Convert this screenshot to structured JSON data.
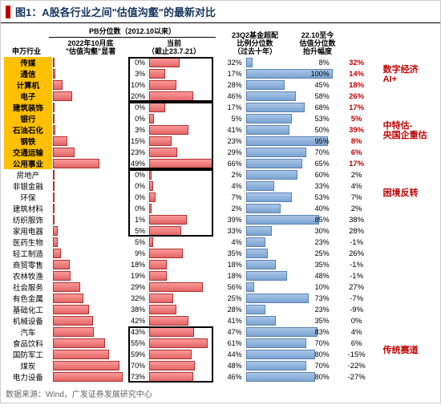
{
  "title": "图1：A股各行业之间\"估值沟壑\"的最新对比",
  "source": "数据来源：Wind，广发证券发展研究中心",
  "headers": {
    "industry": "申万行业",
    "pb_group": "PB分位数（2012.10以来）",
    "col_2022": "2022年10月底\n\"估值沟壑\"显著",
    "col_current": "当前\n（截止23.7.21）",
    "col_q2": "23Q2基金超配\n比例分位数\n（过去十年）",
    "col_change": "22.10至今\n估值分位数\n抬升幅度"
  },
  "group_labels": {
    "g1": "数字经济\nAI+",
    "g2": "中特估-\n央国企重估",
    "g3": "困境反转",
    "g4": "传统赛道"
  },
  "colors": {
    "title_block": "#c00000",
    "title_text": "#17365d",
    "yellow_bg": "#ffc000",
    "bar_red_top": "#ff9999",
    "bar_red_bot": "#e06666",
    "bar_red_border": "#b03030",
    "bar_blue_top": "#a8c5e8",
    "bar_blue_bot": "#7ba3d0",
    "bar_blue_border": "#5a82b0",
    "accent_red": "#c00000"
  },
  "rows": [
    {
      "ind": "传媒",
      "yellow": true,
      "v2022": 0,
      "vcur": 32,
      "vq2": 8,
      "chg": "32%",
      "chg_red": true,
      "group": 1
    },
    {
      "ind": "通信",
      "yellow": true,
      "v2022": 3,
      "vcur": 17,
      "vq2": 100,
      "chg": "14%",
      "chg_red": true,
      "group": 1
    },
    {
      "ind": "计算机",
      "yellow": true,
      "v2022": 10,
      "vcur": 28,
      "vq2": 45,
      "chg": "18%",
      "chg_red": true,
      "group": 1
    },
    {
      "ind": "电子",
      "yellow": true,
      "v2022": 20,
      "vcur": 46,
      "vq2": 58,
      "chg": "26%",
      "chg_red": true,
      "group": 1
    },
    {
      "ind": "建筑装饰",
      "yellow": true,
      "v2022": 0,
      "vcur": 17,
      "vq2": 68,
      "chg": "17%",
      "chg_red": true,
      "group": 2
    },
    {
      "ind": "银行",
      "yellow": true,
      "v2022": 0,
      "vcur": 5,
      "vq2": 53,
      "chg": "5%",
      "chg_red": true,
      "group": 2
    },
    {
      "ind": "石油石化",
      "yellow": true,
      "v2022": 3,
      "vcur": 41,
      "vq2": 50,
      "chg": "39%",
      "chg_red": true,
      "group": 2
    },
    {
      "ind": "钢铁",
      "yellow": true,
      "v2022": 15,
      "vcur": 23,
      "vq2": 95,
      "chg": "8%",
      "chg_red": true,
      "group": 2
    },
    {
      "ind": "交通运输",
      "yellow": true,
      "v2022": 23,
      "vcur": 29,
      "vq2": 70,
      "chg": "6%",
      "chg_red": true,
      "group": 2
    },
    {
      "ind": "公用事业",
      "yellow": true,
      "v2022": 49,
      "vcur": 66,
      "vq2": 65,
      "chg": "17%",
      "chg_red": true,
      "group": 2
    },
    {
      "ind": "房地产",
      "yellow": false,
      "v2022": 0,
      "vcur": 2,
      "vq2": 60,
      "chg": "2%",
      "chg_red": false,
      "group": 3
    },
    {
      "ind": "非银金融",
      "yellow": false,
      "v2022": 0,
      "vcur": 4,
      "vq2": 33,
      "chg": "4%",
      "chg_red": false,
      "group": 3
    },
    {
      "ind": "环保",
      "yellow": false,
      "v2022": 0,
      "vcur": 7,
      "vq2": 53,
      "chg": "7%",
      "chg_red": false,
      "group": 3
    },
    {
      "ind": "建筑材料",
      "yellow": false,
      "v2022": 0,
      "vcur": 2,
      "vq2": 40,
      "chg": "2%",
      "chg_red": false,
      "group": 3
    },
    {
      "ind": "纺织服饰",
      "yellow": false,
      "v2022": 1,
      "vcur": 39,
      "vq2": 85,
      "chg": "38%",
      "chg_red": false,
      "group": 3
    },
    {
      "ind": "家用电器",
      "yellow": false,
      "v2022": 5,
      "vcur": 33,
      "vq2": 30,
      "chg": "28%",
      "chg_red": false,
      "group": 3
    },
    {
      "ind": "医药生物",
      "yellow": false,
      "v2022": 5,
      "vcur": 4,
      "vq2": 23,
      "chg": "-1%",
      "chg_red": false,
      "group": 0
    },
    {
      "ind": "轻工制造",
      "yellow": false,
      "v2022": 9,
      "vcur": 35,
      "vq2": 25,
      "chg": "26%",
      "chg_red": false,
      "group": 0
    },
    {
      "ind": "商贸零售",
      "yellow": false,
      "v2022": 18,
      "vcur": 18,
      "vq2": 35,
      "chg": "-1%",
      "chg_red": false,
      "group": 0
    },
    {
      "ind": "农林牧渔",
      "yellow": false,
      "v2022": 19,
      "vcur": 18,
      "vq2": 48,
      "chg": "-1%",
      "chg_red": false,
      "group": 0
    },
    {
      "ind": "社会服务",
      "yellow": false,
      "v2022": 29,
      "vcur": 56,
      "vq2": 10,
      "chg": "27%",
      "chg_red": false,
      "group": 0
    },
    {
      "ind": "有色金属",
      "yellow": false,
      "v2022": 32,
      "vcur": 25,
      "vq2": 73,
      "chg": "-7%",
      "chg_red": false,
      "group": 0
    },
    {
      "ind": "基础化工",
      "yellow": false,
      "v2022": 38,
      "vcur": 28,
      "vq2": 23,
      "chg": "-9%",
      "chg_red": false,
      "group": 0
    },
    {
      "ind": "机械设备",
      "yellow": false,
      "v2022": 42,
      "vcur": 41,
      "vq2": 35,
      "chg": "0%",
      "chg_red": false,
      "group": 0
    },
    {
      "ind": "汽车",
      "yellow": false,
      "v2022": 43,
      "vcur": 47,
      "vq2": 83,
      "chg": "4%",
      "chg_red": false,
      "group": 4
    },
    {
      "ind": "食品饮料",
      "yellow": false,
      "v2022": 55,
      "vcur": 61,
      "vq2": 70,
      "chg": "6%",
      "chg_red": false,
      "group": 4
    },
    {
      "ind": "国防军工",
      "yellow": false,
      "v2022": 59,
      "vcur": 44,
      "vq2": 80,
      "chg": "-15%",
      "chg_red": false,
      "group": 4
    },
    {
      "ind": "煤炭",
      "yellow": false,
      "v2022": 70,
      "vcur": 48,
      "vq2": 70,
      "chg": "-22%",
      "chg_red": false,
      "group": 4
    },
    {
      "ind": "电力设备",
      "yellow": false,
      "v2022": 73,
      "vcur": 46,
      "vq2": 80,
      "chg": "-27%",
      "chg_red": false,
      "group": 4
    }
  ],
  "highlight_boxes": [
    {
      "start": 0,
      "end": 3
    },
    {
      "start": 4,
      "end": 9
    },
    {
      "start": 10,
      "end": 15
    },
    {
      "start": 24,
      "end": 28
    }
  ]
}
